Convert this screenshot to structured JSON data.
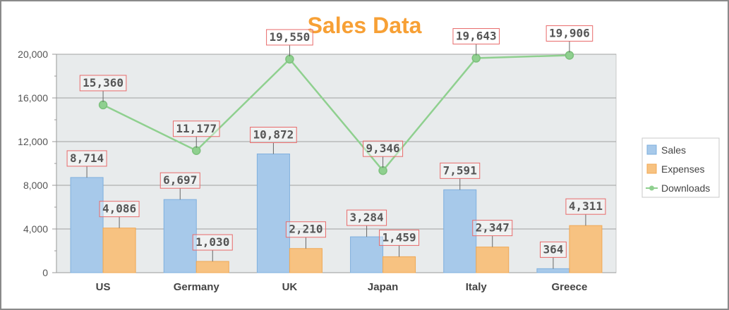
{
  "chart_data": {
    "type": "bar",
    "title": "Sales Data",
    "categories": [
      "US",
      "Germany",
      "UK",
      "Japan",
      "Italy",
      "Greece"
    ],
    "series": [
      {
        "name": "Sales",
        "type": "bar",
        "color": "#a7c9ea",
        "stroke": "#7fb0de",
        "values": [
          8714,
          6697,
          10872,
          3284,
          7591,
          364
        ],
        "labels": [
          "8,714",
          "6,697",
          "10,872",
          "3,284",
          "7,591",
          "364"
        ]
      },
      {
        "name": "Expenses",
        "type": "bar",
        "color": "#f7c281",
        "stroke": "#f0a855",
        "values": [
          4086,
          1030,
          2210,
          1459,
          2347,
          4311
        ],
        "labels": [
          "4,086",
          "1,030",
          "2,210",
          "1,459",
          "2,347",
          "4,311"
        ]
      },
      {
        "name": "Downloads",
        "type": "line",
        "color": "#8fd08f",
        "values": [
          15360,
          11177,
          19550,
          9346,
          19643,
          19906
        ],
        "labels": [
          "15,360",
          "11,177",
          "19,550",
          "9,346",
          "19,643",
          "19,906"
        ]
      }
    ],
    "ylim": [
      0,
      20000
    ],
    "yticks": [
      {
        "value": 0,
        "label": "0"
      },
      {
        "value": 4000,
        "label": "4,000"
      },
      {
        "value": 8000,
        "label": "8,000"
      },
      {
        "value": 12000,
        "label": "12,000"
      },
      {
        "value": 16000,
        "label": "16,000"
      },
      {
        "value": 20000,
        "label": "20,000"
      }
    ],
    "grid": true,
    "legend_position": "right",
    "plot_background": "#e8ebec",
    "label_border_color": "#e86a6a"
  }
}
